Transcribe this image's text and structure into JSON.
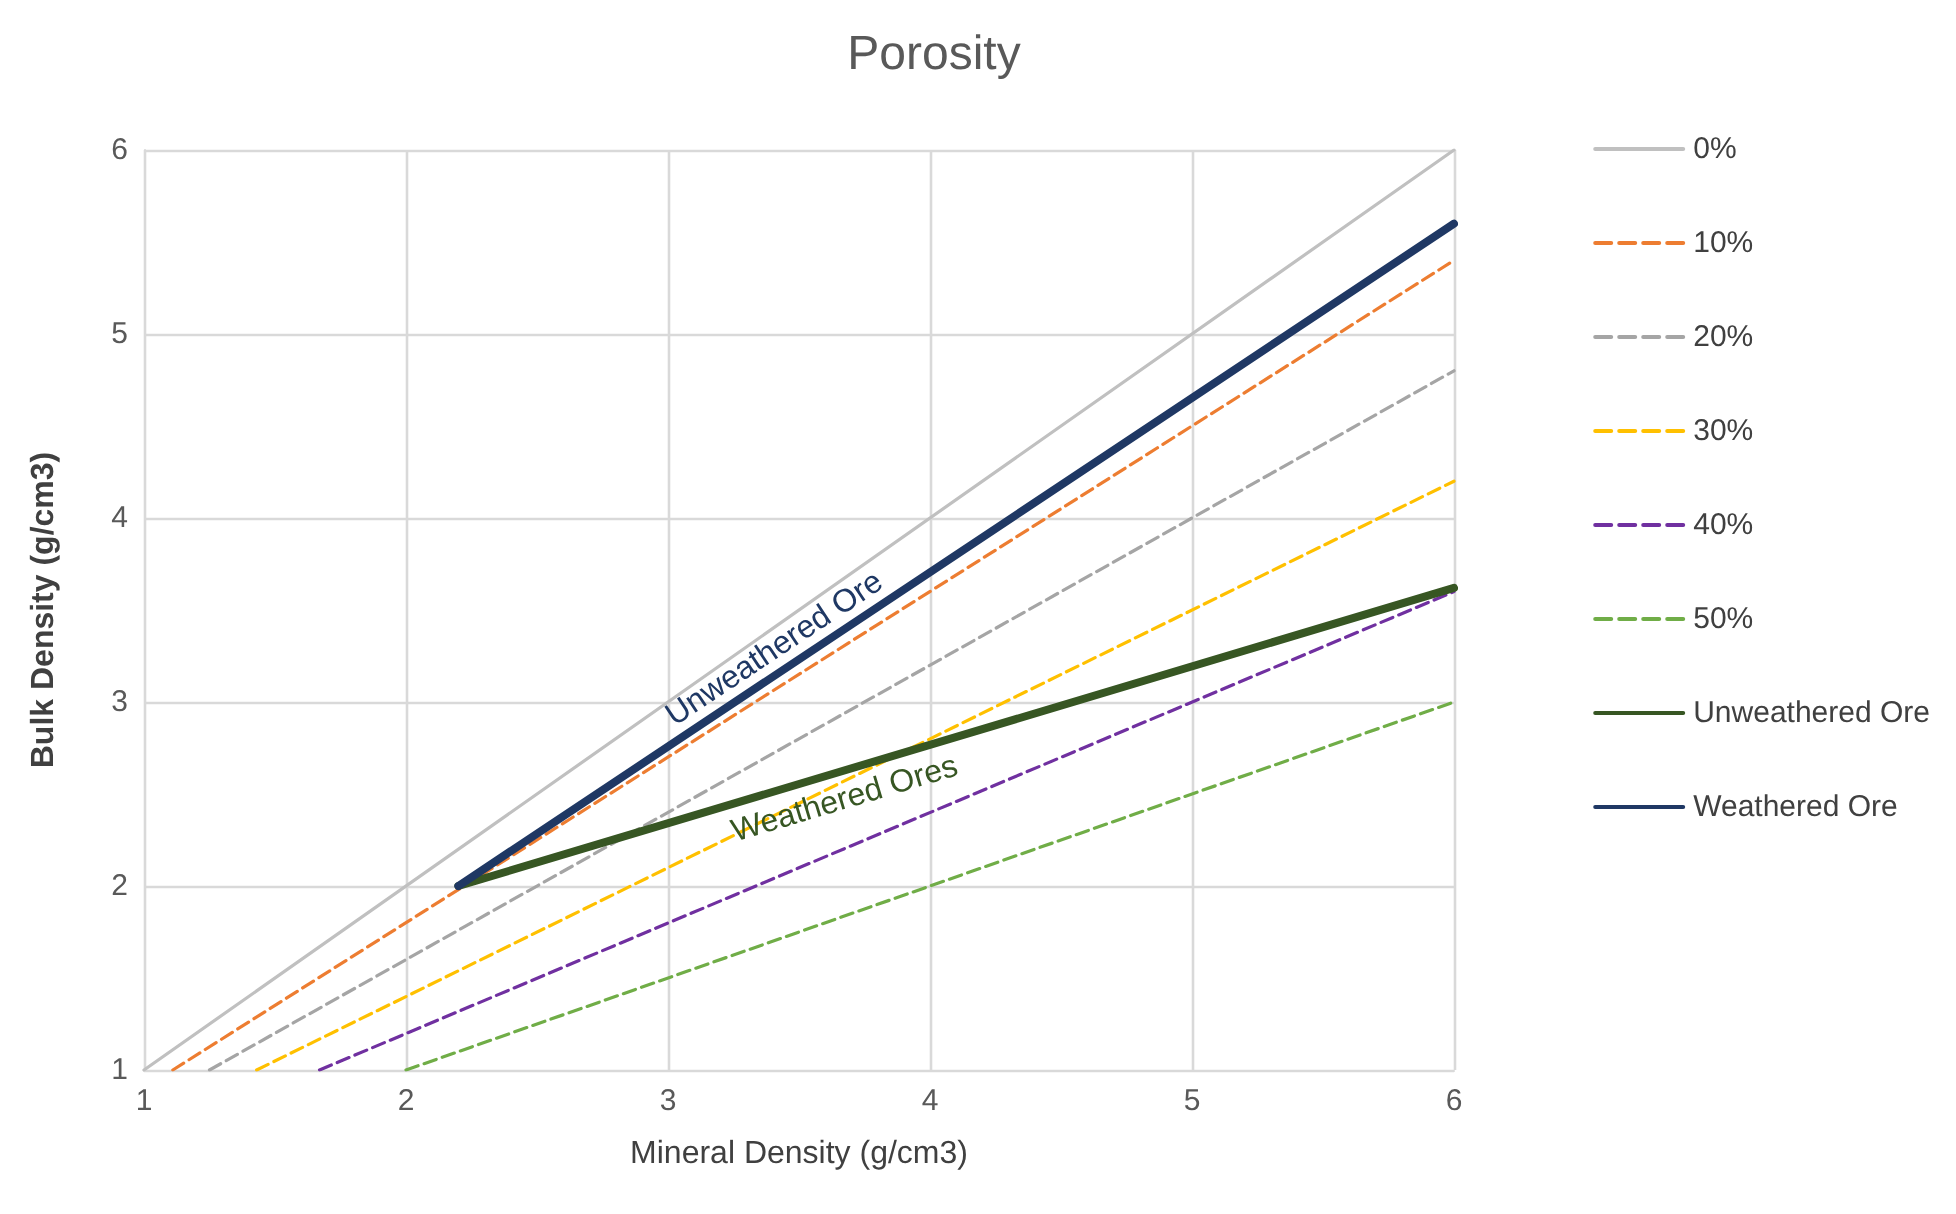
{
  "chart_data": {
    "type": "line",
    "title": "Porosity",
    "xlabel": "Mineral Density (g/cm3)",
    "ylabel": "Bulk Density (g/cm3)",
    "xlim": [
      1,
      6
    ],
    "ylim": [
      1,
      6
    ],
    "xticks": [
      1,
      2,
      3,
      4,
      5,
      6
    ],
    "yticks": [
      1,
      2,
      3,
      4,
      5,
      6
    ],
    "grid": true,
    "legend": "right",
    "marker": "none",
    "series": [
      {
        "name": "0%",
        "color": "#c0c0c0",
        "line_style": "solid",
        "x": [
          1,
          6
        ],
        "values": [
          1,
          6
        ]
      },
      {
        "name": "10%",
        "color": "#ed7d31",
        "line_style": "dashed",
        "x": [
          1.11,
          6
        ],
        "values": [
          1,
          5.4
        ]
      },
      {
        "name": "20%",
        "color": "#a5a5a5",
        "line_style": "dashed",
        "x": [
          1.25,
          6
        ],
        "values": [
          1,
          4.8
        ]
      },
      {
        "name": "30%",
        "color": "#ffc000",
        "line_style": "dashed",
        "x": [
          1.43,
          6
        ],
        "values": [
          1,
          4.2
        ]
      },
      {
        "name": "40%",
        "color": "#7030a0",
        "line_style": "dashed",
        "x": [
          1.67,
          6
        ],
        "values": [
          1,
          3.6
        ]
      },
      {
        "name": "50%",
        "color": "#70ad47",
        "line_style": "dashed",
        "x": [
          2,
          6
        ],
        "values": [
          1,
          3
        ]
      },
      {
        "name": "Unweathered Ore",
        "color": "#375623",
        "line_style": "solid",
        "x": [
          2.2,
          6
        ],
        "values": [
          2,
          3.62
        ]
      },
      {
        "name": "Weathered Ore",
        "color": "#1f3864",
        "line_style": "solid",
        "x": [
          2.2,
          6
        ],
        "values": [
          2,
          5.6
        ]
      }
    ],
    "annotations": [
      "Unweathered Ore",
      "Weathered Ores"
    ]
  }
}
